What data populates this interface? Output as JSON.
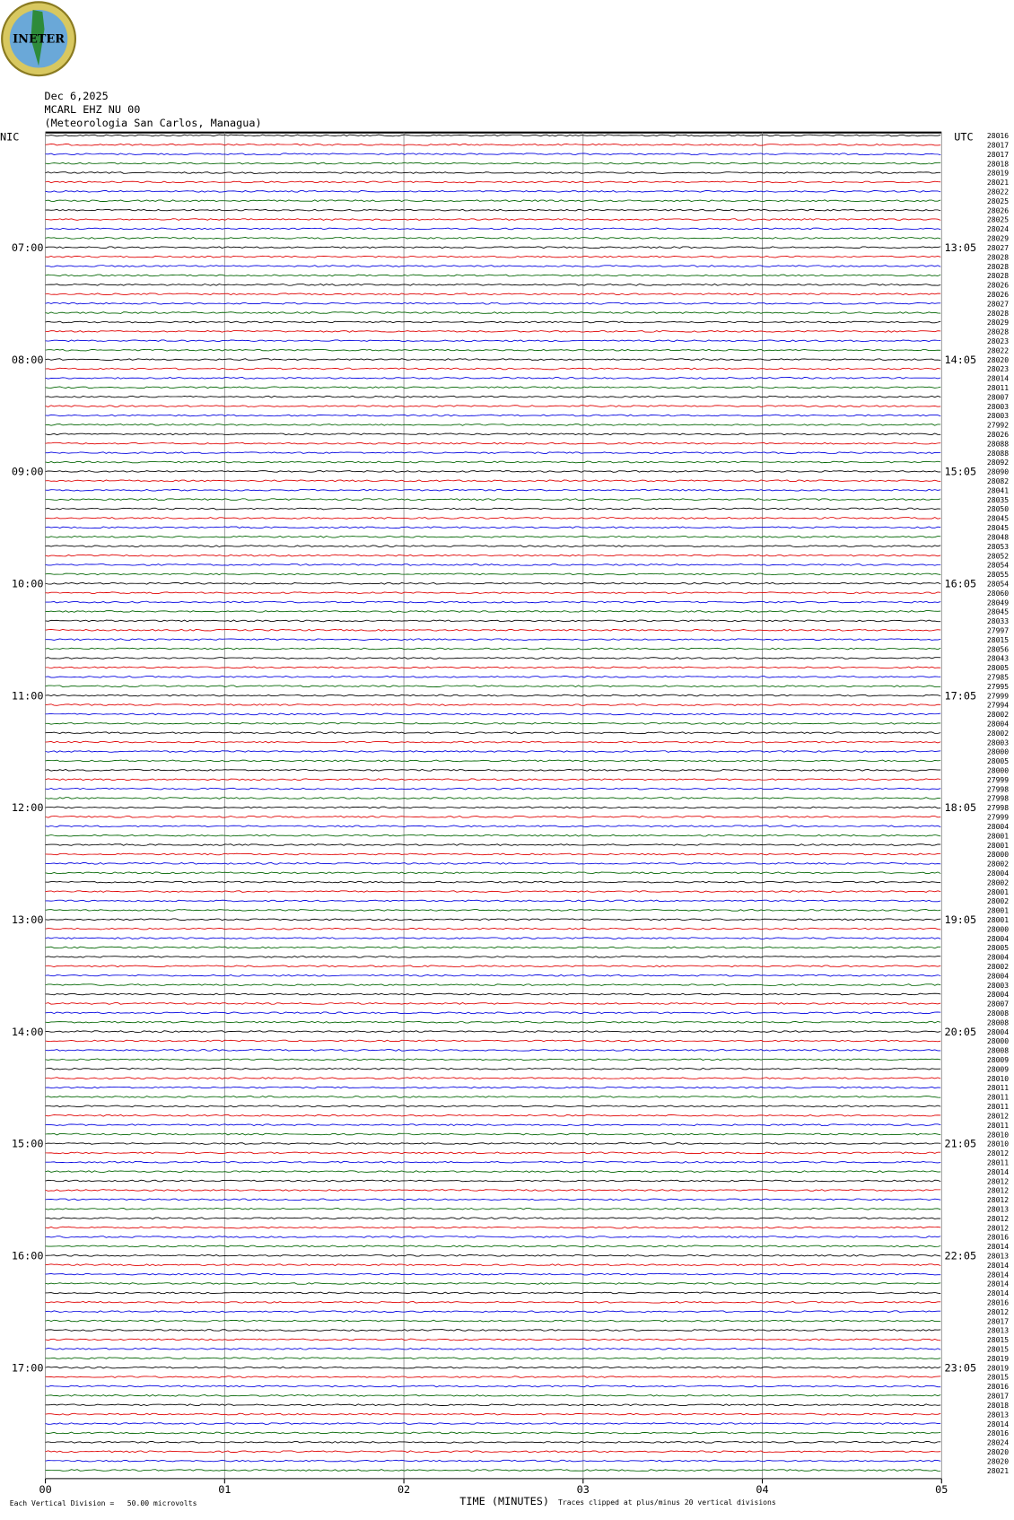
{
  "logo": {
    "text": "INETER"
  },
  "header": {
    "date": "Dec 6,2025",
    "station": "MCARL EHZ NU 00",
    "location": "(Meteorologia San Carlos, Managua)"
  },
  "left_timezone": "NIC",
  "right_timezone": "UTC",
  "left_hours": [
    "07:00",
    "08:00",
    "09:00",
    "10:00",
    "11:00",
    "12:00",
    "13:00",
    "14:00",
    "15:00",
    "16:00",
    "17:00"
  ],
  "right_hours": [
    "13:05",
    "14:05",
    "15:05",
    "16:05",
    "17:05",
    "18:05",
    "19:05",
    "20:05",
    "21:05",
    "22:05",
    "23:05"
  ],
  "trace_counts": [
    "28016",
    "28017",
    "28017",
    "28018",
    "28019",
    "28021",
    "28022",
    "28025",
    "28026",
    "28025",
    "28024",
    "28029",
    "28027",
    "28028",
    "28028",
    "28028",
    "28026",
    "28026",
    "28027",
    "28028",
    "28029",
    "28028",
    "28023",
    "28022",
    "28020",
    "28023",
    "28014",
    "28011",
    "28007",
    "28003",
    "28003",
    "27992",
    "28026",
    "28088",
    "28088",
    "28092",
    "28090",
    "28082",
    "28041",
    "28035",
    "28050",
    "28045",
    "28045",
    "28048",
    "28053",
    "28052",
    "28054",
    "28055",
    "28054",
    "28060",
    "28049",
    "28045",
    "28033",
    "27997",
    "28015",
    "28056",
    "28043",
    "28005",
    "27985",
    "27995",
    "27999",
    "27994",
    "28002",
    "28004",
    "28002",
    "28003",
    "28000",
    "28005",
    "28000",
    "27999",
    "27998",
    "27998",
    "27998",
    "27999",
    "28004",
    "28001",
    "28001",
    "28000",
    "28002",
    "28004",
    "28002",
    "28001",
    "28002",
    "28001",
    "28001",
    "28000",
    "28004",
    "28005",
    "28004",
    "28002",
    "28004",
    "28003",
    "28004",
    "28007",
    "28008",
    "28008",
    "28004",
    "28000",
    "28008",
    "28009",
    "28009",
    "28010",
    "28011",
    "28011",
    "28011",
    "28012",
    "28011",
    "28010",
    "28010",
    "28012",
    "28011",
    "28014",
    "28012",
    "28012",
    "28012",
    "28013",
    "28012",
    "28012",
    "28016",
    "28014",
    "28013",
    "28014",
    "28014",
    "28014",
    "28014",
    "28016",
    "28012",
    "28017",
    "28013",
    "28015",
    "28015",
    "28019",
    "28019",
    "28015",
    "28016",
    "28017",
    "28018",
    "28013",
    "28014",
    "28016",
    "28024",
    "28020",
    "28020",
    "28021"
  ],
  "trace_colors": [
    "#000000",
    "#e00000",
    "#0000e0",
    "#006400"
  ],
  "x_axis": {
    "label": "TIME (MINUTES)",
    "ticks": [
      "00",
      "01",
      "02",
      "03",
      "04",
      "05"
    ]
  },
  "footer": {
    "scale": "Each Vertical Division =   50.00 microvolts",
    "clip": "Traces clipped at plus/minus 20 vertical divisions"
  }
}
